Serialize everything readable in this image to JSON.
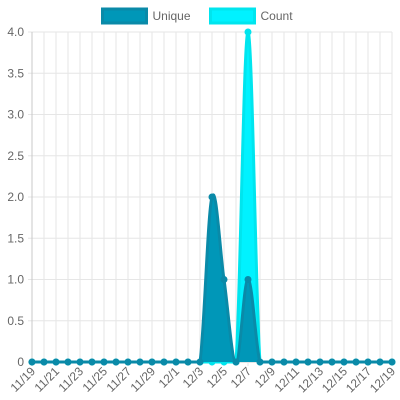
{
  "chart_data": {
    "type": "area",
    "title": "",
    "xlabel": "",
    "ylabel": "",
    "ylim": [
      0,
      4
    ],
    "yticks": [
      "0",
      "0.5",
      "1.0",
      "1.5",
      "2.0",
      "2.5",
      "3.0",
      "3.5",
      "4.0"
    ],
    "grid": true,
    "legend_position": "top",
    "x": [
      "11/19",
      "11/20",
      "11/21",
      "11/22",
      "11/23",
      "11/24",
      "11/25",
      "11/26",
      "11/27",
      "11/28",
      "11/29",
      "11/30",
      "12/1",
      "12/2",
      "12/3",
      "12/4",
      "12/5",
      "12/6",
      "12/7",
      "12/8",
      "12/9",
      "12/10",
      "12/11",
      "12/12",
      "12/13",
      "12/14",
      "12/15",
      "12/16",
      "12/17",
      "12/18",
      "12/19"
    ],
    "xtick_labels": [
      "11/19",
      "11/21",
      "11/23",
      "11/25",
      "11/27",
      "11/29",
      "12/1",
      "12/3",
      "12/5",
      "12/7",
      "12/9",
      "12/11",
      "12/13",
      "12/15",
      "12/17",
      "12/19"
    ],
    "series": [
      {
        "name": "Unique",
        "fill": "#0097b8",
        "stroke": "#0a8aa8",
        "values": [
          0,
          0,
          0,
          0,
          0,
          0,
          0,
          0,
          0,
          0,
          0,
          0,
          0,
          0,
          0,
          2,
          1,
          0,
          1,
          0,
          0,
          0,
          0,
          0,
          0,
          0,
          0,
          0,
          0,
          0,
          0
        ]
      },
      {
        "name": "Count",
        "fill": "#00f2ff",
        "stroke": "#00e5ee",
        "values": [
          0,
          0,
          0,
          0,
          0,
          0,
          0,
          0,
          0,
          0,
          0,
          0,
          0,
          0,
          0,
          0,
          0,
          0,
          4,
          0,
          0,
          0,
          0,
          0,
          0,
          0,
          0,
          0,
          0,
          0,
          0
        ]
      }
    ]
  }
}
